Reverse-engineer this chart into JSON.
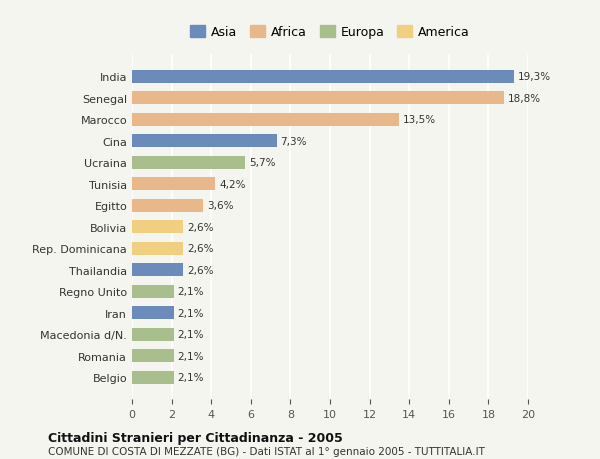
{
  "countries": [
    "India",
    "Senegal",
    "Marocco",
    "Cina",
    "Ucraina",
    "Tunisia",
    "Egitto",
    "Bolivia",
    "Rep. Dominicana",
    "Thailandia",
    "Regno Unito",
    "Iran",
    "Macedonia d/N.",
    "Romania",
    "Belgio"
  ],
  "values": [
    19.3,
    18.8,
    13.5,
    7.3,
    5.7,
    4.2,
    3.6,
    2.6,
    2.6,
    2.6,
    2.1,
    2.1,
    2.1,
    2.1,
    2.1
  ],
  "labels": [
    "19,3%",
    "18,8%",
    "13,5%",
    "7,3%",
    "5,7%",
    "4,2%",
    "3,6%",
    "2,6%",
    "2,6%",
    "2,6%",
    "2,1%",
    "2,1%",
    "2,1%",
    "2,1%",
    "2,1%"
  ],
  "continents": [
    "Asia",
    "Africa",
    "Africa",
    "Asia",
    "Europa",
    "Africa",
    "Africa",
    "America",
    "America",
    "Asia",
    "Europa",
    "Asia",
    "Europa",
    "Europa",
    "Europa"
  ],
  "continent_colors": {
    "Asia": "#6b8cba",
    "Africa": "#e8b88a",
    "Europa": "#a8be8c",
    "America": "#f0d080"
  },
  "legend_order": [
    "Asia",
    "Africa",
    "Europa",
    "America"
  ],
  "title": "Cittadini Stranieri per Cittadinanza - 2005",
  "subtitle": "COMUNE DI COSTA DI MEZZATE (BG) - Dati ISTAT al 1° gennaio 2005 - TUTTITALIA.IT",
  "xlim": [
    0,
    20
  ],
  "xticks": [
    0,
    2,
    4,
    6,
    8,
    10,
    12,
    14,
    16,
    18,
    20
  ],
  "background_color": "#f5f5f0",
  "grid_color": "#ffffff",
  "bar_height": 0.6
}
